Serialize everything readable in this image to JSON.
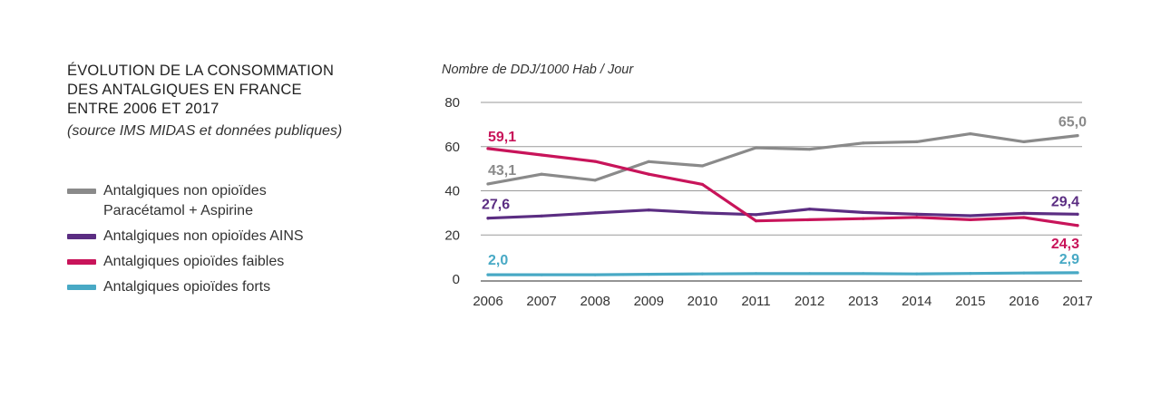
{
  "title": {
    "lines": [
      "ÉVOLUTION DE LA CONSOMMATION",
      "DES ANTALGIQUES EN FRANCE",
      "ENTRE 2006 ET 2017"
    ],
    "subtitle": "(source IMS MIDAS et données publiques)"
  },
  "legend": [
    {
      "line1": "Antalgiques non opioïdes",
      "line2": "Paracétamol + Aspirine",
      "color": "#8a8a8a"
    },
    {
      "line1": "Antalgiques non opioïdes AINS",
      "line2": "",
      "color": "#5b2d82"
    },
    {
      "line1": "Antalgiques opioïdes faibles",
      "line2": "",
      "color": "#c8145a"
    },
    {
      "line1": "Antalgiques opioïdes forts",
      "line2": "",
      "color": "#48a9c5"
    }
  ],
  "chart_data": {
    "type": "line",
    "ylabel": "Nombre de DDJ/1000 Hab / Jour",
    "ylim": [
      0,
      80
    ],
    "yticks": [
      "0",
      "20",
      "40",
      "60",
      "80"
    ],
    "yticks_values": [
      0,
      20,
      40,
      60,
      80
    ],
    "categories": [
      "2006",
      "2007",
      "2008",
      "2009",
      "2010",
      "2011",
      "2012",
      "2013",
      "2014",
      "2015",
      "2016",
      "2017"
    ],
    "grid": "horizontal",
    "series": [
      {
        "name": "Antalgiques non opioïdes Paracétamol + Aspirine",
        "color": "#8a8a8a",
        "values": [
          43.1,
          47.5,
          44.8,
          53.2,
          51.3,
          59.5,
          58.8,
          61.6,
          62.2,
          65.8,
          62.2,
          65.0
        ],
        "start_label": "43,1",
        "end_label": "65,0"
      },
      {
        "name": "Antalgiques non opioïdes AINS",
        "color": "#5b2d82",
        "values": [
          27.6,
          28.6,
          30.0,
          31.3,
          30.0,
          29.2,
          31.7,
          30.2,
          29.4,
          28.7,
          29.8,
          29.4
        ],
        "start_label": "27,6",
        "end_label": "29,4"
      },
      {
        "name": "Antalgiques opioïdes faibles",
        "color": "#c8145a",
        "values": [
          59.1,
          56.2,
          53.3,
          47.5,
          42.9,
          26.4,
          26.9,
          27.4,
          28.0,
          26.9,
          27.9,
          24.3
        ],
        "start_label": "59,1",
        "end_label": "24,3"
      },
      {
        "name": "Antalgiques opioïdes forts",
        "color": "#48a9c5",
        "values": [
          2.0,
          2.0,
          2.0,
          2.2,
          2.4,
          2.5,
          2.5,
          2.5,
          2.4,
          2.6,
          2.8,
          2.9
        ],
        "start_label": "2,0",
        "end_label": "2,9"
      }
    ]
  }
}
